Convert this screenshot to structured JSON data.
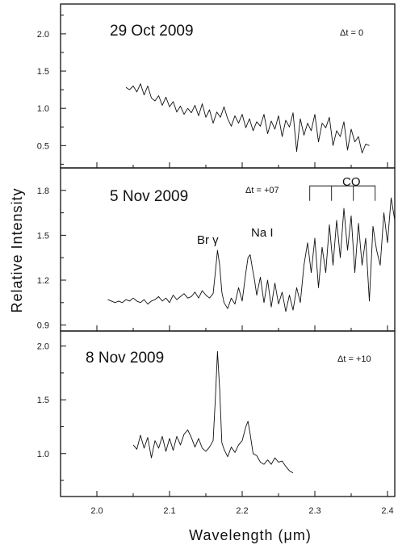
{
  "figure": {
    "ylabel": "Relative Intensity",
    "xlabel": "Wavelength (μm)",
    "x_ticks": [
      "2.0",
      "2.1",
      "2.2",
      "2.3",
      "2.4"
    ]
  },
  "chart_data": [
    {
      "type": "line",
      "title": "29 Oct 2009",
      "annotation": "Δt = 0",
      "xlim": [
        1.95,
        2.41
      ],
      "ylim": [
        0.2,
        2.4
      ],
      "y_ticks": [
        "0.5",
        "1.0",
        "1.5",
        "2.0"
      ],
      "y_tick_values": [
        0.5,
        1.0,
        1.5,
        2.0
      ],
      "x": [
        2.04,
        2.045,
        2.05,
        2.055,
        2.06,
        2.065,
        2.07,
        2.075,
        2.08,
        2.085,
        2.09,
        2.095,
        2.1,
        2.105,
        2.11,
        2.115,
        2.12,
        2.125,
        2.13,
        2.135,
        2.14,
        2.145,
        2.15,
        2.155,
        2.16,
        2.165,
        2.17,
        2.175,
        2.18,
        2.185,
        2.19,
        2.195,
        2.2,
        2.205,
        2.21,
        2.215,
        2.22,
        2.225,
        2.23,
        2.235,
        2.24,
        2.245,
        2.25,
        2.255,
        2.26,
        2.265,
        2.27,
        2.275,
        2.28,
        2.285,
        2.29,
        2.295,
        2.3,
        2.305,
        2.31,
        2.315,
        2.32,
        2.325,
        2.33,
        2.335,
        2.34,
        2.345,
        2.35,
        2.355,
        2.36,
        2.365,
        2.37,
        2.375
      ],
      "y": [
        1.28,
        1.25,
        1.3,
        1.22,
        1.33,
        1.18,
        1.3,
        1.14,
        1.1,
        1.17,
        1.04,
        1.15,
        1.02,
        1.09,
        0.95,
        1.03,
        0.92,
        1.0,
        0.94,
        1.04,
        0.9,
        1.06,
        0.88,
        0.98,
        0.8,
        0.95,
        0.88,
        1.02,
        0.86,
        0.76,
        0.9,
        0.8,
        0.92,
        0.74,
        0.86,
        0.7,
        0.82,
        0.76,
        0.92,
        0.66,
        0.83,
        0.72,
        0.9,
        0.62,
        0.84,
        0.75,
        0.94,
        0.42,
        0.86,
        0.64,
        0.8,
        0.7,
        0.92,
        0.55,
        0.8,
        0.74,
        0.88,
        0.5,
        0.7,
        0.62,
        0.82,
        0.44,
        0.72,
        0.55,
        0.62,
        0.4,
        0.52,
        0.5
      ]
    },
    {
      "type": "line",
      "title": "5 Nov 2009",
      "annotation": "Δt = +07",
      "xlim": [
        1.95,
        2.41
      ],
      "ylim": [
        0.86,
        1.95
      ],
      "y_ticks": [
        "0.9",
        "1.2",
        "1.5",
        "1.8"
      ],
      "y_tick_values": [
        0.9,
        1.2,
        1.5,
        1.8
      ],
      "labels": [
        {
          "text": "Br γ",
          "x": 2.166,
          "y": 1.44
        },
        {
          "text": "Na I",
          "x": 2.21,
          "y": 1.53
        },
        {
          "text": "CO",
          "x": 2.336,
          "y": 1.88
        }
      ],
      "co_bandheads": [
        2.293,
        2.323,
        2.353,
        2.383
      ],
      "x": [
        2.015,
        2.02,
        2.025,
        2.03,
        2.035,
        2.04,
        2.045,
        2.05,
        2.055,
        2.06,
        2.065,
        2.07,
        2.075,
        2.08,
        2.085,
        2.09,
        2.095,
        2.1,
        2.105,
        2.11,
        2.115,
        2.12,
        2.125,
        2.13,
        2.135,
        2.14,
        2.145,
        2.15,
        2.155,
        2.16,
        2.163,
        2.166,
        2.169,
        2.172,
        2.175,
        2.18,
        2.185,
        2.19,
        2.195,
        2.2,
        2.205,
        2.208,
        2.211,
        2.214,
        2.217,
        2.22,
        2.225,
        2.23,
        2.235,
        2.24,
        2.245,
        2.25,
        2.255,
        2.26,
        2.265,
        2.27,
        2.275,
        2.28,
        2.285,
        2.29,
        2.295,
        2.3,
        2.305,
        2.31,
        2.315,
        2.32,
        2.325,
        2.33,
        2.335,
        2.34,
        2.345,
        2.35,
        2.355,
        2.36,
        2.365,
        2.37,
        2.375,
        2.38,
        2.385,
        2.39,
        2.395,
        2.4,
        2.405,
        2.41
      ],
      "y": [
        1.07,
        1.06,
        1.05,
        1.06,
        1.05,
        1.07,
        1.06,
        1.08,
        1.06,
        1.05,
        1.07,
        1.04,
        1.06,
        1.07,
        1.09,
        1.06,
        1.08,
        1.05,
        1.1,
        1.07,
        1.09,
        1.11,
        1.08,
        1.09,
        1.12,
        1.08,
        1.13,
        1.1,
        1.08,
        1.11,
        1.25,
        1.4,
        1.3,
        1.12,
        1.05,
        1.01,
        1.08,
        1.04,
        1.15,
        1.06,
        1.25,
        1.35,
        1.37,
        1.28,
        1.2,
        1.1,
        1.22,
        1.05,
        1.2,
        1.02,
        1.18,
        1.04,
        1.12,
        0.99,
        1.1,
        1.0,
        1.15,
        1.05,
        1.3,
        1.45,
        1.25,
        1.48,
        1.15,
        1.42,
        1.25,
        1.57,
        1.3,
        1.6,
        1.35,
        1.68,
        1.4,
        1.63,
        1.25,
        1.58,
        1.3,
        1.48,
        1.06,
        1.56,
        1.4,
        1.3,
        1.65,
        1.45,
        1.75,
        1.6
      ]
    },
    {
      "type": "line",
      "title": "8 Nov 2009",
      "annotation": "Δt = +10",
      "xlim": [
        1.95,
        2.41
      ],
      "ylim": [
        0.6,
        2.14
      ],
      "y_ticks": [
        "1.0",
        "1.5",
        "2.0"
      ],
      "y_tick_values": [
        1.0,
        1.5,
        2.0
      ],
      "x": [
        2.05,
        2.055,
        2.06,
        2.065,
        2.07,
        2.075,
        2.08,
        2.085,
        2.09,
        2.095,
        2.1,
        2.105,
        2.11,
        2.115,
        2.12,
        2.125,
        2.13,
        2.135,
        2.14,
        2.145,
        2.15,
        2.155,
        2.16,
        2.163,
        2.166,
        2.169,
        2.172,
        2.175,
        2.18,
        2.185,
        2.19,
        2.195,
        2.2,
        2.205,
        2.208,
        2.211,
        2.215,
        2.22,
        2.225,
        2.23,
        2.235,
        2.24,
        2.245,
        2.25,
        2.255,
        2.26,
        2.265,
        2.27
      ],
      "y": [
        1.08,
        1.04,
        1.17,
        1.05,
        1.15,
        0.96,
        1.12,
        1.05,
        1.16,
        1.02,
        1.14,
        1.03,
        1.16,
        1.08,
        1.18,
        1.22,
        1.15,
        1.06,
        1.14,
        1.05,
        1.02,
        1.06,
        1.12,
        1.5,
        1.95,
        1.6,
        1.1,
        1.04,
        0.97,
        1.06,
        1.01,
        1.08,
        1.12,
        1.25,
        1.3,
        1.18,
        1.0,
        0.98,
        0.92,
        0.9,
        0.94,
        0.9,
        0.96,
        0.92,
        0.93,
        0.88,
        0.84,
        0.82
      ]
    }
  ]
}
